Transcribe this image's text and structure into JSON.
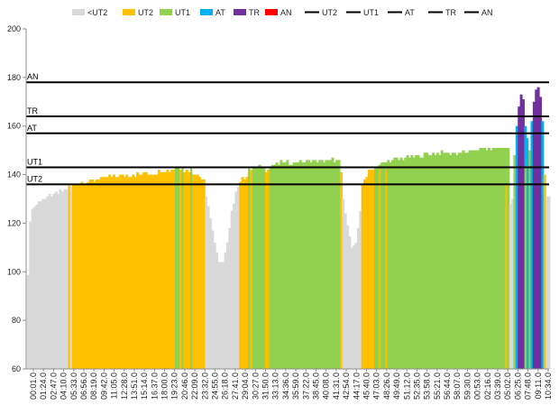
{
  "chart_data": {
    "type": "bar",
    "title": "",
    "xlabel": "",
    "ylabel": "",
    "ylim": [
      60,
      200
    ],
    "y_ticks": [
      60,
      80,
      100,
      120,
      140,
      160,
      180,
      200
    ],
    "grid": false,
    "legend_position": "top",
    "legend": [
      {
        "label": "<UT2",
        "kind": "swatch",
        "color": "#d9d9d9"
      },
      {
        "label": "UT2",
        "kind": "swatch",
        "color": "#ffc000"
      },
      {
        "label": "UT1",
        "kind": "swatch",
        "color": "#92d050"
      },
      {
        "label": "AT",
        "kind": "swatch",
        "color": "#00b0f0"
      },
      {
        "label": "TR",
        "kind": "swatch",
        "color": "#7030a0"
      },
      {
        "label": "AN",
        "kind": "swatch",
        "color": "#ff0000"
      },
      {
        "label": "UT2",
        "kind": "line",
        "color": "#000000"
      },
      {
        "label": "UT1",
        "kind": "line",
        "color": "#000000"
      },
      {
        "label": "AT",
        "kind": "line",
        "color": "#000000"
      },
      {
        "label": "TR",
        "kind": "line",
        "color": "#000000"
      },
      {
        "label": "AN",
        "kind": "line",
        "color": "#000000"
      }
    ],
    "thresholds": [
      {
        "name": "UT2",
        "value": 136
      },
      {
        "name": "UT1",
        "value": 143
      },
      {
        "name": "AT",
        "value": 157
      },
      {
        "name": "TR",
        "value": 164
      },
      {
        "name": "AN",
        "value": 178
      }
    ],
    "zone_colors": {
      "<UT2": "#d9d9d9",
      "UT2": "#ffc000",
      "UT1": "#92d050",
      "AT": "#00b0f0",
      "TR": "#7030a0",
      "AN": "#ff0000"
    },
    "x_tick_labels": [
      "00:01.0",
      "01:24.0",
      "02:47.0",
      "04:10.0",
      "05:33.0",
      "06:56.0",
      "08:19.0",
      "09:42.0",
      "11:05.0",
      "12:28.0",
      "13:51.0",
      "15:14.0",
      "16:37.0",
      "18:00.0",
      "19:23.0",
      "20:46.0",
      "22:09.0",
      "23:32.0",
      "24:55.0",
      "26:18.0",
      "27:41.0",
      "29:04.0",
      "30:27.0",
      "31:50.0",
      "33:13.0",
      "34:36.0",
      "35:59.0",
      "37:22.0",
      "38:45.0",
      "40:08.0",
      "41:31.0",
      "42:54.0",
      "44:17.0",
      "45:40.0",
      "47:03.0",
      "48:26.0",
      "49:49.0",
      "51:12.0",
      "52:35.0",
      "53:58.0",
      "55:21.0",
      "56:44.0",
      "58:07.0",
      "59:30.0",
      "00:53.0",
      "02:16.0",
      "03:39.0",
      "05:02.0",
      "06:25.0",
      "07:48.0",
      "09:11.0",
      "10:34.0"
    ],
    "heart_rate_profile": [
      [
        0,
        60
      ],
      [
        1.5,
        118
      ],
      [
        3,
        126
      ],
      [
        8,
        130
      ],
      [
        11,
        131
      ],
      [
        14,
        132
      ],
      [
        16,
        133
      ],
      [
        18,
        134
      ],
      [
        20,
        135
      ],
      [
        23,
        136
      ],
      [
        28,
        137
      ],
      [
        33,
        138
      ],
      [
        38,
        139
      ],
      [
        50,
        140
      ],
      [
        60,
        141
      ],
      [
        68,
        142
      ],
      [
        70,
        143
      ],
      [
        73,
        142
      ],
      [
        77,
        141
      ],
      [
        80,
        140
      ],
      [
        83,
        138
      ],
      [
        84,
        132
      ],
      [
        86,
        122
      ],
      [
        88,
        112
      ],
      [
        90,
        104
      ],
      [
        92,
        104
      ],
      [
        94,
        112
      ],
      [
        96,
        124
      ],
      [
        98,
        134
      ],
      [
        100,
        137
      ],
      [
        102,
        139
      ],
      [
        104,
        141
      ],
      [
        106,
        142
      ],
      [
        108,
        143
      ],
      [
        111,
        143
      ],
      [
        112,
        142
      ],
      [
        113,
        143
      ],
      [
        115,
        144
      ],
      [
        120,
        145
      ],
      [
        130,
        145
      ],
      [
        140,
        146
      ],
      [
        145,
        146
      ],
      [
        146,
        145
      ],
      [
        147,
        140
      ],
      [
        148,
        130
      ],
      [
        150,
        119
      ],
      [
        152,
        110
      ],
      [
        154,
        112
      ],
      [
        156,
        124
      ],
      [
        157,
        136
      ],
      [
        158,
        138
      ],
      [
        159,
        139
      ],
      [
        160,
        141
      ],
      [
        161,
        142
      ],
      [
        162,
        143
      ],
      [
        168,
        145
      ],
      [
        172,
        146
      ],
      [
        178,
        147
      ],
      [
        185,
        148
      ],
      [
        195,
        149
      ],
      [
        205,
        149
      ],
      [
        210,
        150
      ],
      [
        220,
        151
      ],
      [
        225,
        151
      ],
      [
        226,
        128
      ],
      [
        227,
        130
      ],
      [
        228,
        148
      ],
      [
        229,
        160
      ],
      [
        230,
        168
      ],
      [
        231,
        173
      ],
      [
        232,
        171
      ],
      [
        233,
        160
      ],
      [
        234,
        146
      ],
      [
        235,
        150
      ],
      [
        236,
        162
      ],
      [
        237,
        170
      ],
      [
        238,
        175
      ],
      [
        239,
        176
      ],
      [
        240,
        172
      ],
      [
        241,
        162
      ],
      [
        242,
        140
      ],
      [
        243,
        131
      ],
      [
        244,
        131
      ]
    ],
    "zone_spikes": [
      {
        "x": 20.0,
        "height": 136,
        "zone": "UT2"
      },
      {
        "x": 27.0,
        "height": 136,
        "zone": "UT2"
      },
      {
        "x": 29.0,
        "height": 136,
        "zone": "UT2"
      },
      {
        "x": 30.5,
        "height": 136,
        "zone": "UT2"
      },
      {
        "x": 71.0,
        "height": 143,
        "zone": "UT1"
      },
      {
        "x": 73.0,
        "height": 143,
        "zone": "UT1"
      },
      {
        "x": 77.0,
        "height": 143,
        "zone": "UT1"
      },
      {
        "x": 101.0,
        "height": 136,
        "zone": "UT2"
      },
      {
        "x": 104.0,
        "height": 143,
        "zone": "UT1"
      },
      {
        "x": 106.0,
        "height": 143,
        "zone": "UT1"
      },
      {
        "x": 109.0,
        "height": 143,
        "zone": "UT1"
      },
      {
        "x": 111.0,
        "height": 143,
        "zone": "UT1"
      },
      {
        "x": 114.0,
        "height": 143,
        "zone": "UT1"
      },
      {
        "x": 160.0,
        "height": 142,
        "zone": "UT2"
      },
      {
        "x": 162.0,
        "height": 142,
        "zone": "UT2"
      },
      {
        "x": 165.0,
        "height": 142,
        "zone": "UT2"
      },
      {
        "x": 168.0,
        "height": 142,
        "zone": "UT2"
      },
      {
        "x": 224.0,
        "height": 136,
        "zone": "UT2"
      },
      {
        "x": 233.0,
        "height": 143,
        "zone": "UT1"
      },
      {
        "x": 234.0,
        "height": 155,
        "zone": "AT"
      }
    ],
    "x_samples": 245
  }
}
